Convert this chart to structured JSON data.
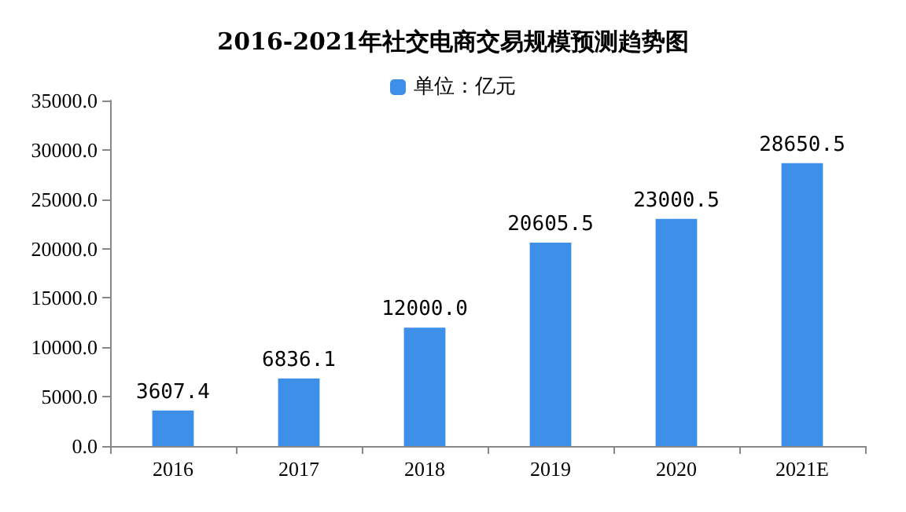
{
  "chart_data": {
    "type": "bar",
    "title": "2016-2021年社交电商交易规模预测趋势图",
    "categories": [
      "2016",
      "2017",
      "2018",
      "2019",
      "2020",
      "2021E"
    ],
    "series": [
      {
        "name": "单位：亿元",
        "color": "#3d8fe8",
        "values": [
          3607.4,
          6836.1,
          12000.0,
          20605.5,
          23000.5,
          28650.5
        ],
        "value_labels": [
          "3607.4",
          "6836.1",
          "12000.0",
          "20605.5",
          "23000.5",
          "28650.5"
        ]
      }
    ],
    "ylim": [
      0,
      35000
    ],
    "yticks": [
      {
        "value": 0,
        "label": "0.0"
      },
      {
        "value": 5000,
        "label": "5000.0"
      },
      {
        "value": 10000,
        "label": "10000.0"
      },
      {
        "value": 15000,
        "label": "15000.0"
      },
      {
        "value": 20000,
        "label": "20000.0"
      },
      {
        "value": 25000,
        "label": "25000.0"
      },
      {
        "value": 30000,
        "label": "30000.0"
      },
      {
        "value": 35000,
        "label": "35000.0"
      }
    ],
    "grid": false,
    "legend": "top"
  }
}
